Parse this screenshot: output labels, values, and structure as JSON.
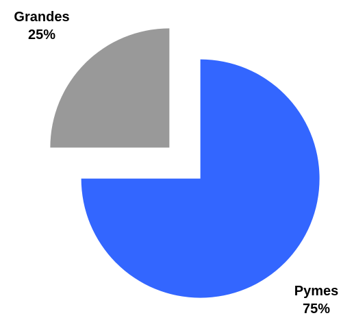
{
  "chart_data": {
    "type": "pie",
    "exploded": true,
    "slices": [
      {
        "name": "Pymes",
        "value": 75,
        "label": "75%",
        "color": "#3366FF"
      },
      {
        "name": "Grandes",
        "value": 25,
        "label": "25%",
        "color": "#999999"
      }
    ],
    "legend": "none"
  }
}
